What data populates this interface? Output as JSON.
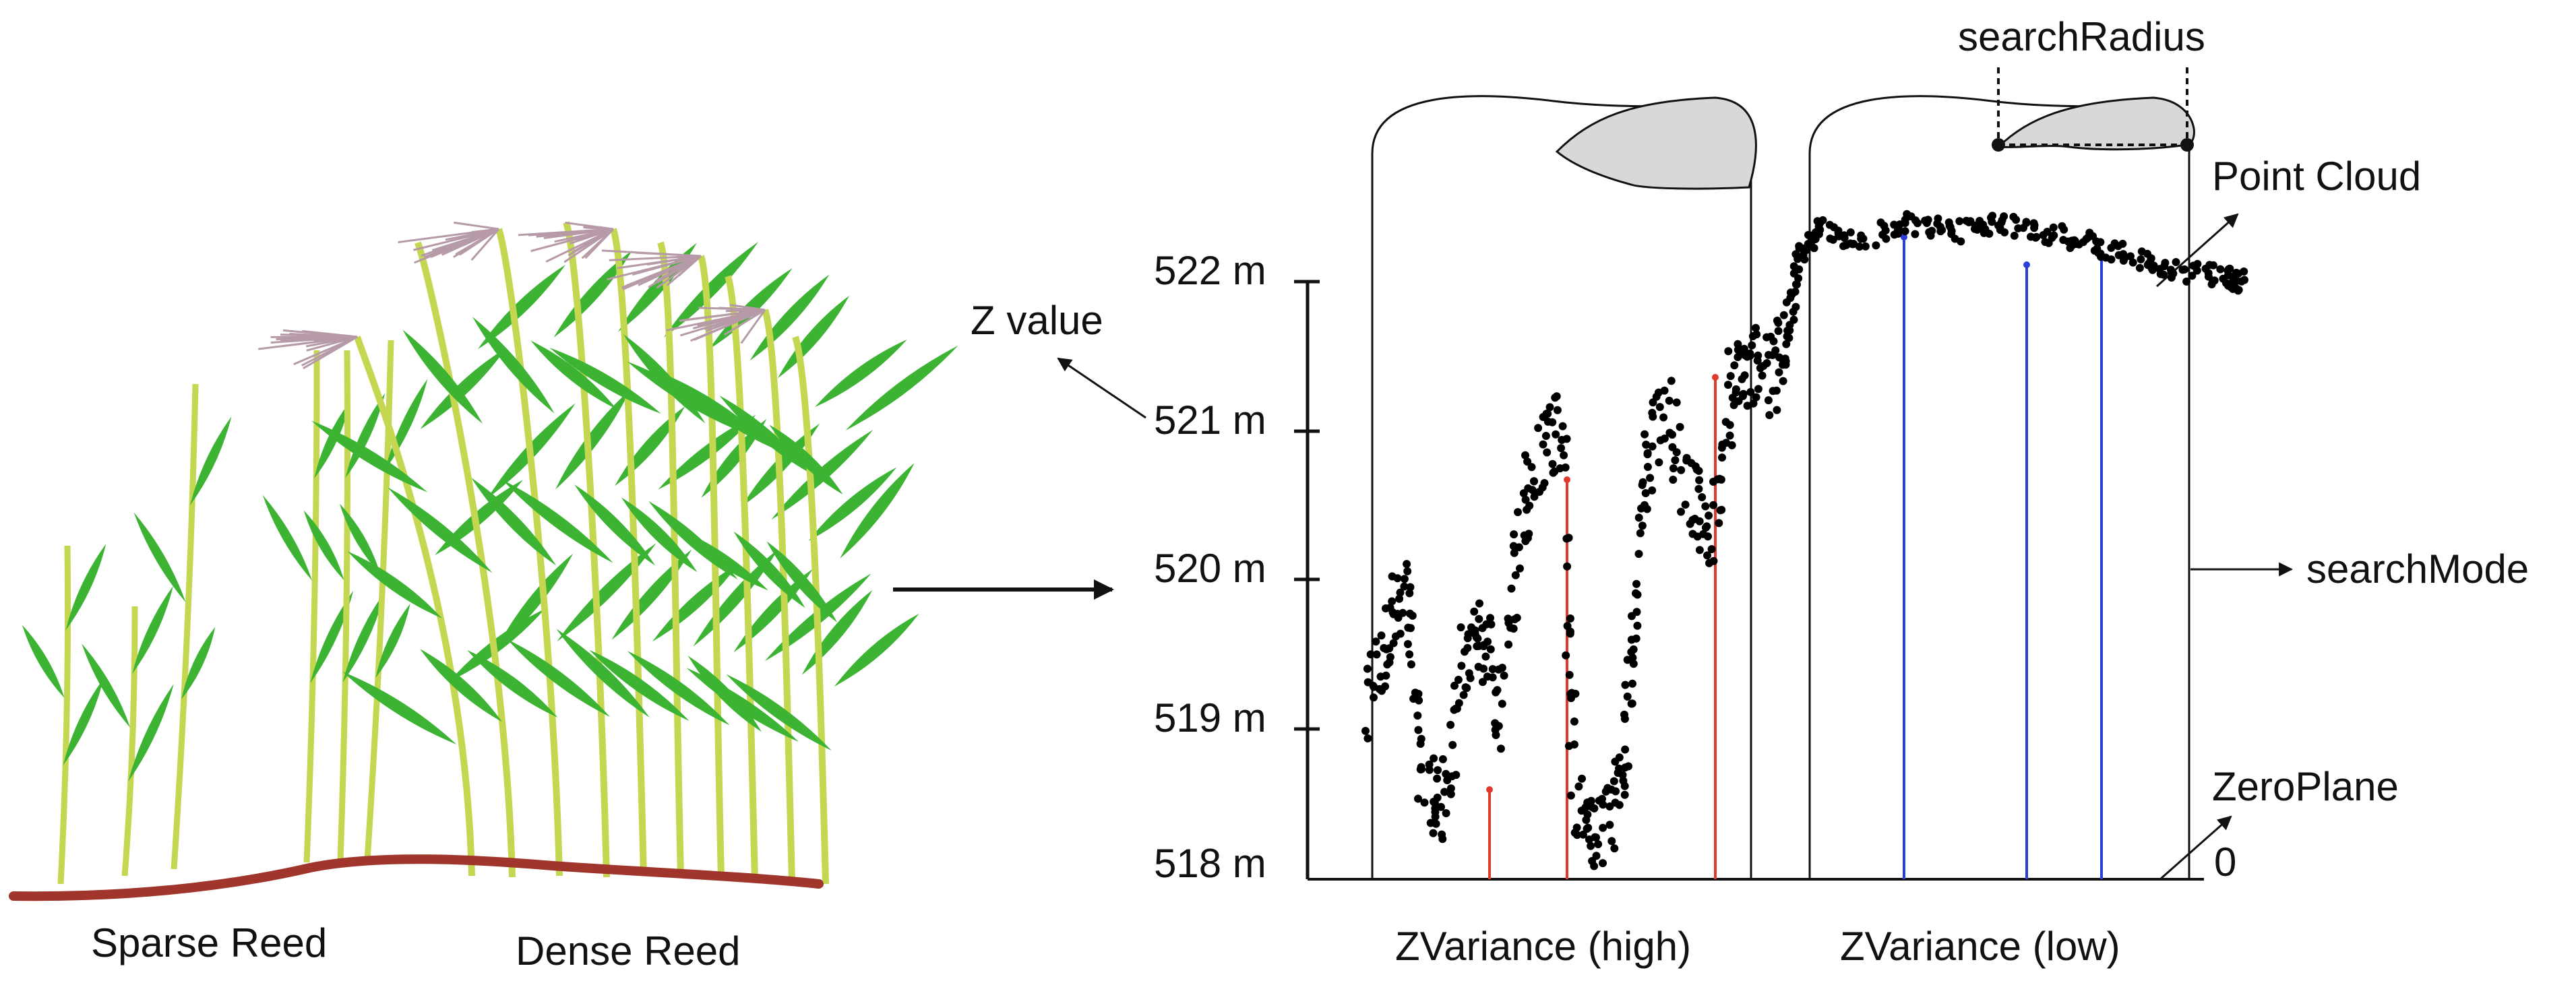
{
  "labels": {
    "sparse_reed": "Sparse Reed",
    "dense_reed": "Dense Reed",
    "z_value": "Z value",
    "search_radius": "searchRadius",
    "point_cloud": "Point Cloud",
    "search_mode": "searchMode",
    "zero_plane": "ZeroPlane",
    "zero": "0",
    "zvariance_high": "ZVariance (high)",
    "zvariance_low": "ZVariance (low)"
  },
  "y_axis": {
    "ticks": [
      "518 m",
      "519 m",
      "520 m",
      "521 m",
      "522 m"
    ]
  },
  "colors": {
    "ground": "#a0352b",
    "stem": "#c5d650",
    "leaf": "#3cb332",
    "plume": "#b69aa8",
    "high_variance_line": "#e03a2f",
    "low_variance_line": "#2a3fd8",
    "search_radius_fill": "#d8d8d8",
    "points": "#000000"
  },
  "icons": {
    "arrow": "right-arrow-icon"
  }
}
